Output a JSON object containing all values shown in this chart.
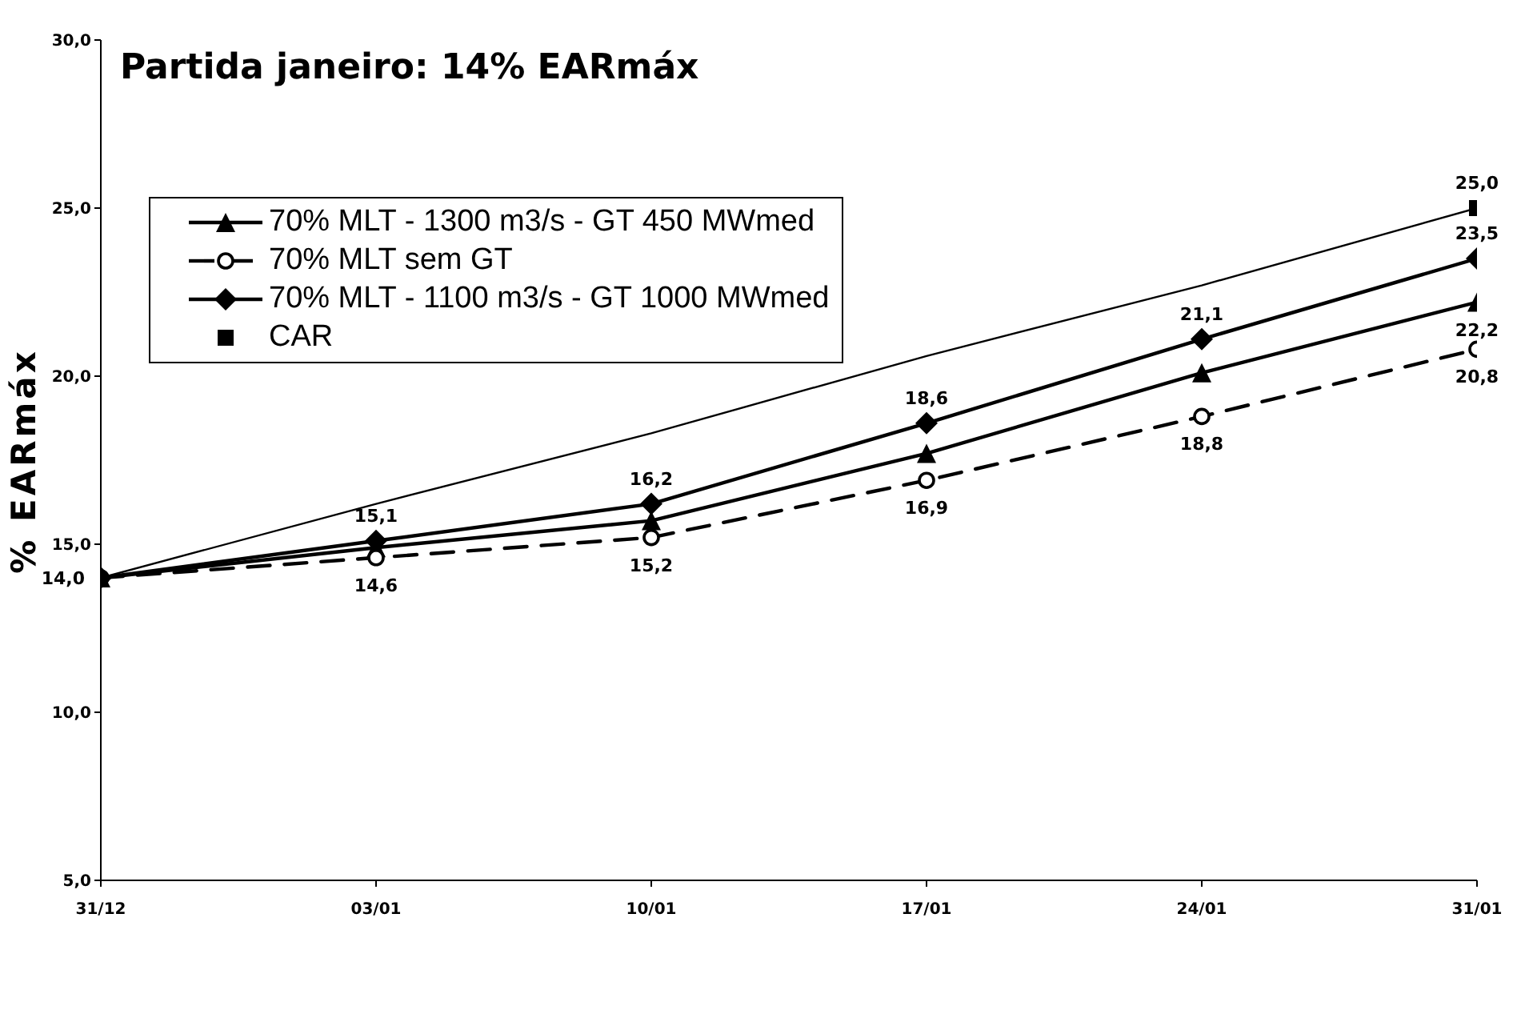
{
  "chart_data": {
    "type": "line",
    "title": "Partida janeiro: 14% EARmáx",
    "ylabel": "% EARmáx",
    "categories": [
      "31/12",
      "03/01",
      "10/01",
      "17/01",
      "24/01",
      "31/01"
    ],
    "ylim": [
      5,
      30
    ],
    "yticks": [
      {
        "value": 5,
        "label": "5,0"
      },
      {
        "value": 10,
        "label": "10,0"
      },
      {
        "value": 15,
        "label": "15,0"
      },
      {
        "value": 20,
        "label": "20,0"
      },
      {
        "value": 25,
        "label": "25,0"
      },
      {
        "value": 30,
        "label": "30,0"
      }
    ],
    "legend": "top left",
    "series": [
      {
        "name": "70% MLT - 1300 m3/s - GT 450 MWmed",
        "color": "#000000",
        "marker": "triangle",
        "line_style": "solid",
        "values": [
          14.0,
          14.9,
          15.7,
          17.7,
          20.1,
          22.2
        ],
        "value_labels": [
          null,
          null,
          null,
          null,
          null,
          "22,2"
        ]
      },
      {
        "name": "70% MLT sem GT",
        "color": "#000000",
        "marker": "circle",
        "line_style": "dashed",
        "values": [
          14.0,
          14.6,
          15.2,
          16.9,
          18.8,
          20.8
        ],
        "value_labels": [
          null,
          "14,6",
          "15,2",
          "16,9",
          "18,8",
          "20,8"
        ]
      },
      {
        "name": "70% MLT - 1100 m3/s - GT 1000 MWmed",
        "color": "#000000",
        "marker": "diamond",
        "line_style": "solid",
        "values": [
          14.0,
          15.1,
          16.2,
          18.6,
          21.1,
          23.5
        ],
        "value_labels": [
          "14,0",
          "15,1",
          "16,2",
          "18,6",
          "21,1",
          "23,5"
        ]
      },
      {
        "name": "CAR",
        "type": "scatter",
        "color": "#000000",
        "marker": "square",
        "values": [
          null,
          null,
          null,
          null,
          null,
          25.0
        ],
        "value_labels": [
          null,
          null,
          null,
          null,
          null,
          "25,0"
        ]
      },
      {
        "type": "line",
        "color": "#000000",
        "marker": "none",
        "line_style": "solid",
        "values": [
          14.0,
          16.2,
          18.3,
          20.6,
          22.7,
          25.0
        ]
      }
    ]
  }
}
